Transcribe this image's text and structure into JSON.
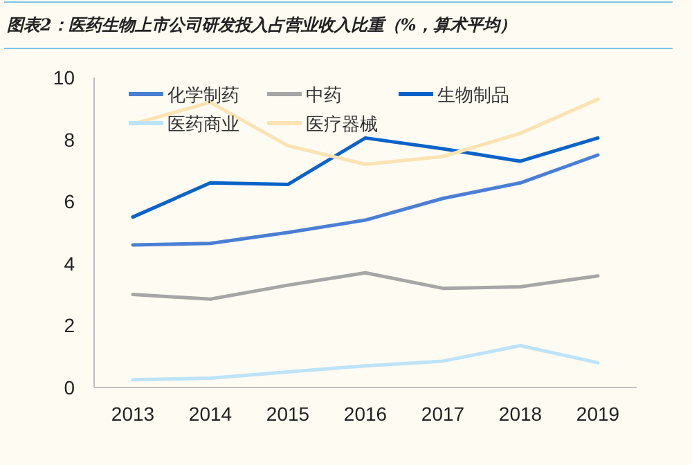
{
  "chart_data": {
    "type": "line",
    "title": "图表2：医药生物上市公司研发投入占营业收入比重（%，算术平均）",
    "categories": [
      "2013",
      "2014",
      "2015",
      "2016",
      "2017",
      "2018",
      "2019"
    ],
    "series": [
      {
        "name": "化学制药",
        "color": "#4a7fd4",
        "values": [
          4.6,
          4.65,
          5.0,
          5.4,
          6.1,
          6.6,
          7.5
        ]
      },
      {
        "name": "中药",
        "color": "#a6a6a6",
        "values": [
          3.0,
          2.85,
          3.3,
          3.7,
          3.2,
          3.25,
          3.6
        ]
      },
      {
        "name": "生物制品",
        "color": "#0a63c9",
        "values": [
          5.5,
          6.6,
          6.55,
          8.05,
          7.7,
          7.3,
          8.05
        ]
      },
      {
        "name": "医药商业",
        "color": "#bde3f8",
        "values": [
          0.25,
          0.3,
          0.5,
          0.7,
          0.85,
          1.35,
          0.8
        ]
      },
      {
        "name": "医疗器械",
        "color": "#fbe3b3",
        "values": [
          8.5,
          9.2,
          7.8,
          7.2,
          7.45,
          8.2,
          9.3
        ]
      }
    ],
    "ylim": [
      0,
      10
    ],
    "yticks": [
      0,
      2,
      4,
      6,
      8,
      10
    ],
    "legend": "top left"
  }
}
